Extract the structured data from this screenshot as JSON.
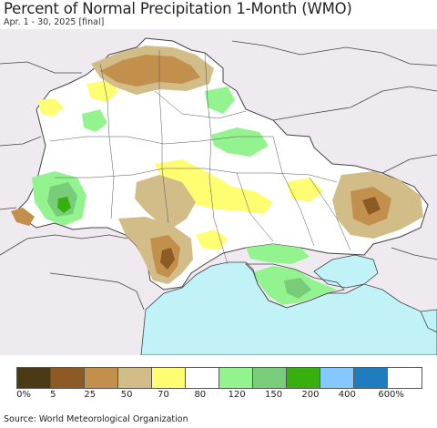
{
  "header": {
    "title": "Percent of Normal Precipitation 1-Month (WMO)",
    "subtitle": "Apr. 1 - 30, 2025 [final]"
  },
  "map": {
    "background_color": "#efeaef",
    "sea_color": "#c0f2f8",
    "border_color": "#444444"
  },
  "legend": {
    "colors": [
      "#4b3a16",
      "#8c5a22",
      "#c28f4d",
      "#d2bc87",
      "#fffe72",
      "#ffffff",
      "#93f48f",
      "#78cc7a",
      "#37b00f",
      "#85c8ff",
      "#1f7dbf"
    ],
    "labels": [
      "0%",
      "5",
      "25",
      "50",
      "70",
      "80",
      "120",
      "150",
      "200",
      "400",
      "600%"
    ]
  },
  "footer": {
    "source": "Source: World Meteorological Organization"
  }
}
